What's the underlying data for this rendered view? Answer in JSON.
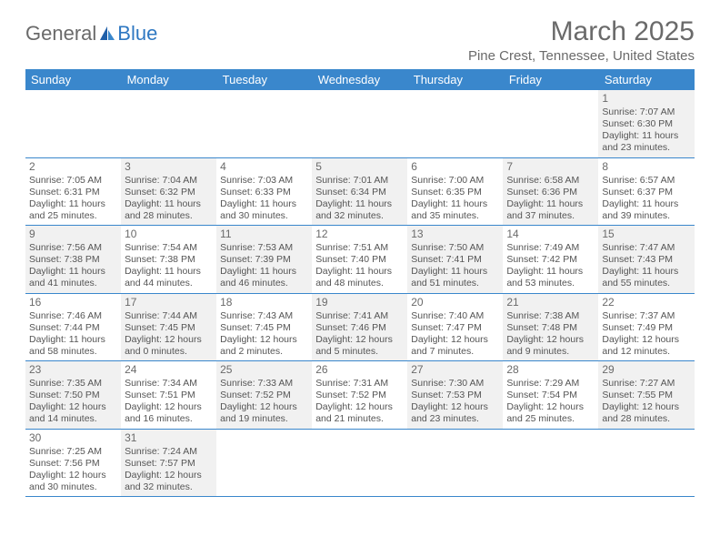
{
  "logo": {
    "text1": "General",
    "text2": "Blue"
  },
  "header": {
    "month_title": "March 2025",
    "location": "Pine Crest, Tennessee, United States"
  },
  "colors": {
    "header_bg": "#3a87cc",
    "header_text": "#ffffff",
    "border": "#3a87cc",
    "body_text": "#555555",
    "shade": "#f1f1f1"
  },
  "day_headers": [
    "Sunday",
    "Monday",
    "Tuesday",
    "Wednesday",
    "Thursday",
    "Friday",
    "Saturday"
  ],
  "weeks": [
    [
      null,
      null,
      null,
      null,
      null,
      null,
      {
        "n": "1",
        "sr": "Sunrise: 7:07 AM",
        "ss": "Sunset: 6:30 PM",
        "dl": "Daylight: 11 hours and 23 minutes."
      }
    ],
    [
      {
        "n": "2",
        "sr": "Sunrise: 7:05 AM",
        "ss": "Sunset: 6:31 PM",
        "dl": "Daylight: 11 hours and 25 minutes."
      },
      {
        "n": "3",
        "sr": "Sunrise: 7:04 AM",
        "ss": "Sunset: 6:32 PM",
        "dl": "Daylight: 11 hours and 28 minutes."
      },
      {
        "n": "4",
        "sr": "Sunrise: 7:03 AM",
        "ss": "Sunset: 6:33 PM",
        "dl": "Daylight: 11 hours and 30 minutes."
      },
      {
        "n": "5",
        "sr": "Sunrise: 7:01 AM",
        "ss": "Sunset: 6:34 PM",
        "dl": "Daylight: 11 hours and 32 minutes."
      },
      {
        "n": "6",
        "sr": "Sunrise: 7:00 AM",
        "ss": "Sunset: 6:35 PM",
        "dl": "Daylight: 11 hours and 35 minutes."
      },
      {
        "n": "7",
        "sr": "Sunrise: 6:58 AM",
        "ss": "Sunset: 6:36 PM",
        "dl": "Daylight: 11 hours and 37 minutes."
      },
      {
        "n": "8",
        "sr": "Sunrise: 6:57 AM",
        "ss": "Sunset: 6:37 PM",
        "dl": "Daylight: 11 hours and 39 minutes."
      }
    ],
    [
      {
        "n": "9",
        "sr": "Sunrise: 7:56 AM",
        "ss": "Sunset: 7:38 PM",
        "dl": "Daylight: 11 hours and 41 minutes."
      },
      {
        "n": "10",
        "sr": "Sunrise: 7:54 AM",
        "ss": "Sunset: 7:38 PM",
        "dl": "Daylight: 11 hours and 44 minutes."
      },
      {
        "n": "11",
        "sr": "Sunrise: 7:53 AM",
        "ss": "Sunset: 7:39 PM",
        "dl": "Daylight: 11 hours and 46 minutes."
      },
      {
        "n": "12",
        "sr": "Sunrise: 7:51 AM",
        "ss": "Sunset: 7:40 PM",
        "dl": "Daylight: 11 hours and 48 minutes."
      },
      {
        "n": "13",
        "sr": "Sunrise: 7:50 AM",
        "ss": "Sunset: 7:41 PM",
        "dl": "Daylight: 11 hours and 51 minutes."
      },
      {
        "n": "14",
        "sr": "Sunrise: 7:49 AM",
        "ss": "Sunset: 7:42 PM",
        "dl": "Daylight: 11 hours and 53 minutes."
      },
      {
        "n": "15",
        "sr": "Sunrise: 7:47 AM",
        "ss": "Sunset: 7:43 PM",
        "dl": "Daylight: 11 hours and 55 minutes."
      }
    ],
    [
      {
        "n": "16",
        "sr": "Sunrise: 7:46 AM",
        "ss": "Sunset: 7:44 PM",
        "dl": "Daylight: 11 hours and 58 minutes."
      },
      {
        "n": "17",
        "sr": "Sunrise: 7:44 AM",
        "ss": "Sunset: 7:45 PM",
        "dl": "Daylight: 12 hours and 0 minutes."
      },
      {
        "n": "18",
        "sr": "Sunrise: 7:43 AM",
        "ss": "Sunset: 7:45 PM",
        "dl": "Daylight: 12 hours and 2 minutes."
      },
      {
        "n": "19",
        "sr": "Sunrise: 7:41 AM",
        "ss": "Sunset: 7:46 PM",
        "dl": "Daylight: 12 hours and 5 minutes."
      },
      {
        "n": "20",
        "sr": "Sunrise: 7:40 AM",
        "ss": "Sunset: 7:47 PM",
        "dl": "Daylight: 12 hours and 7 minutes."
      },
      {
        "n": "21",
        "sr": "Sunrise: 7:38 AM",
        "ss": "Sunset: 7:48 PM",
        "dl": "Daylight: 12 hours and 9 minutes."
      },
      {
        "n": "22",
        "sr": "Sunrise: 7:37 AM",
        "ss": "Sunset: 7:49 PM",
        "dl": "Daylight: 12 hours and 12 minutes."
      }
    ],
    [
      {
        "n": "23",
        "sr": "Sunrise: 7:35 AM",
        "ss": "Sunset: 7:50 PM",
        "dl": "Daylight: 12 hours and 14 minutes."
      },
      {
        "n": "24",
        "sr": "Sunrise: 7:34 AM",
        "ss": "Sunset: 7:51 PM",
        "dl": "Daylight: 12 hours and 16 minutes."
      },
      {
        "n": "25",
        "sr": "Sunrise: 7:33 AM",
        "ss": "Sunset: 7:52 PM",
        "dl": "Daylight: 12 hours and 19 minutes."
      },
      {
        "n": "26",
        "sr": "Sunrise: 7:31 AM",
        "ss": "Sunset: 7:52 PM",
        "dl": "Daylight: 12 hours and 21 minutes."
      },
      {
        "n": "27",
        "sr": "Sunrise: 7:30 AM",
        "ss": "Sunset: 7:53 PM",
        "dl": "Daylight: 12 hours and 23 minutes."
      },
      {
        "n": "28",
        "sr": "Sunrise: 7:29 AM",
        "ss": "Sunset: 7:54 PM",
        "dl": "Daylight: 12 hours and 25 minutes."
      },
      {
        "n": "29",
        "sr": "Sunrise: 7:27 AM",
        "ss": "Sunset: 7:55 PM",
        "dl": "Daylight: 12 hours and 28 minutes."
      }
    ],
    [
      {
        "n": "30",
        "sr": "Sunrise: 7:25 AM",
        "ss": "Sunset: 7:56 PM",
        "dl": "Daylight: 12 hours and 30 minutes."
      },
      {
        "n": "31",
        "sr": "Sunrise: 7:24 AM",
        "ss": "Sunset: 7:57 PM",
        "dl": "Daylight: 12 hours and 32 minutes."
      },
      null,
      null,
      null,
      null,
      null
    ]
  ]
}
